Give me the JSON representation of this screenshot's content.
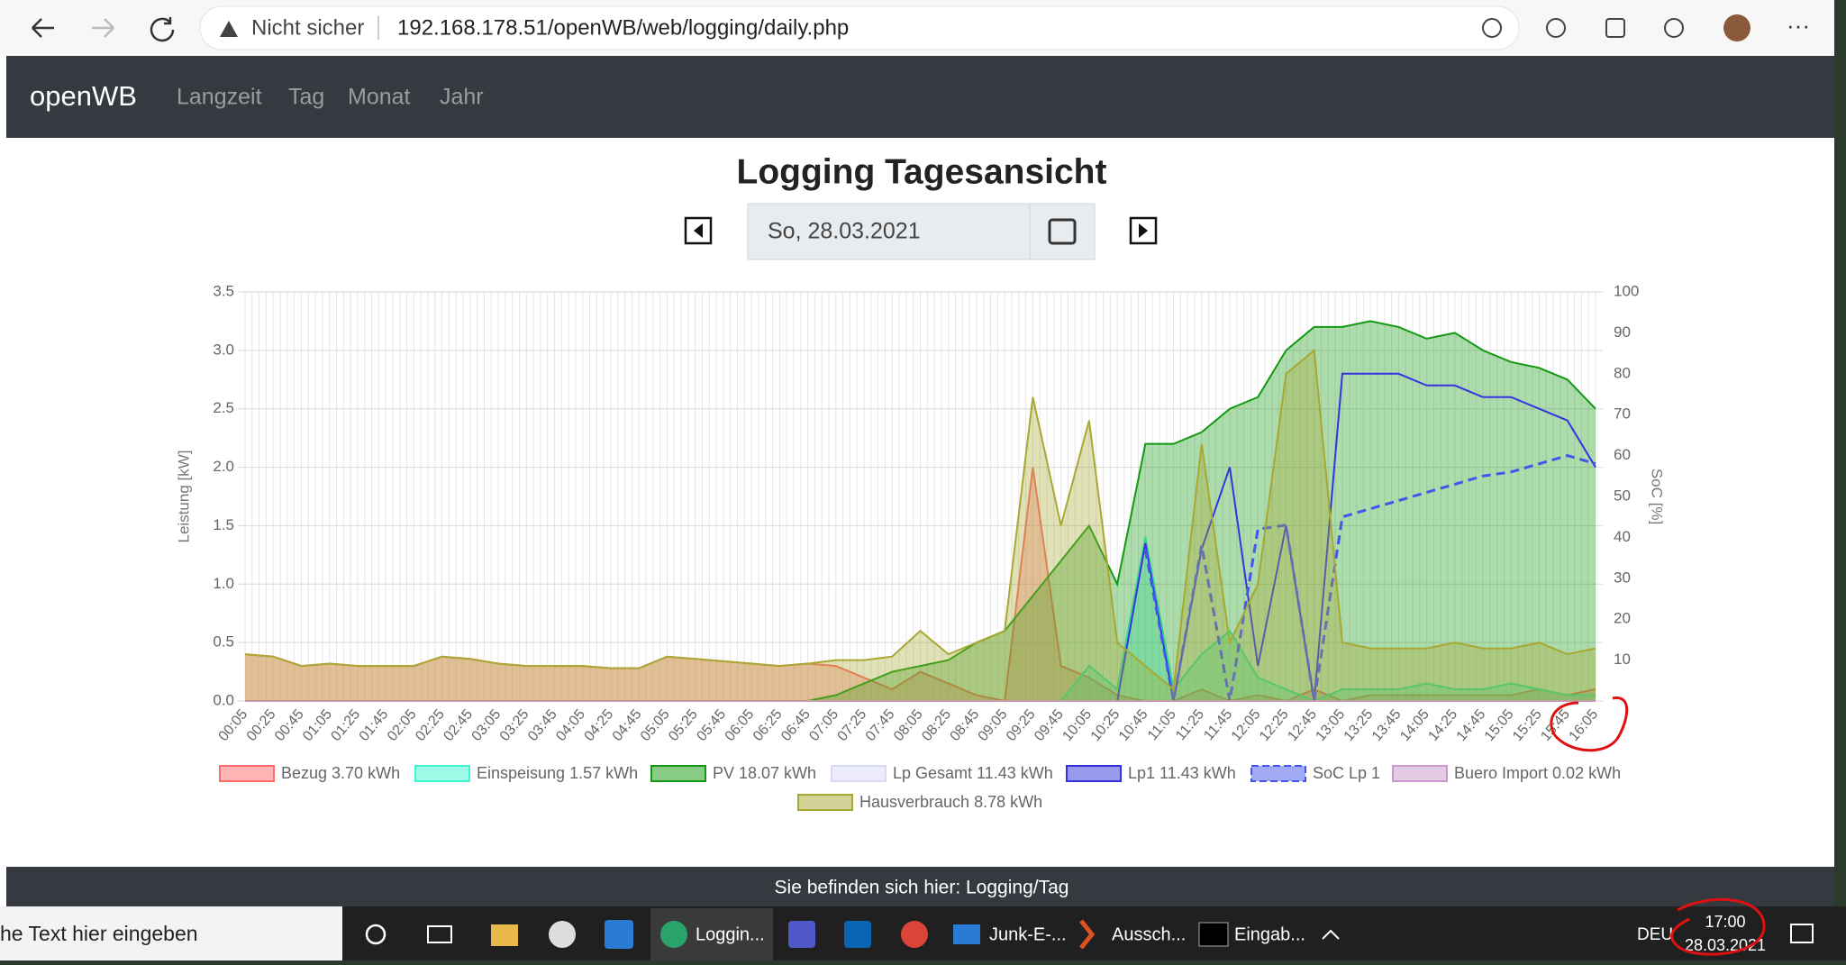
{
  "browser": {
    "security": "Nicht sicher",
    "url": "192.168.178.51/openWB/web/logging/daily.php"
  },
  "navbar": {
    "brand": "openWB",
    "links": [
      "Langzeit",
      "Tag",
      "Monat",
      "Jahr"
    ]
  },
  "page": {
    "title": "Logging Tagesansicht",
    "date": "So, 28.03.2021"
  },
  "chart_data": {
    "type": "line",
    "y_label": "Leistung [kW]",
    "y2_label": "SoC [%]",
    "categories": [
      "00:05",
      "00:25",
      "00:45",
      "01:05",
      "01:25",
      "01:45",
      "02:05",
      "02:25",
      "02:45",
      "03:05",
      "03:25",
      "03:45",
      "04:05",
      "04:25",
      "04:45",
      "05:05",
      "05:25",
      "05:45",
      "06:05",
      "06:25",
      "06:45",
      "07:05",
      "07:25",
      "07:45",
      "08:05",
      "08:25",
      "08:45",
      "09:05",
      "09:25",
      "09:45",
      "10:05",
      "10:25",
      "10:45",
      "11:05",
      "11:25",
      "11:45",
      "12:05",
      "12:25",
      "12:45",
      "13:05",
      "13:25",
      "13:45",
      "14:05",
      "14:25",
      "14:45",
      "15:05",
      "15:25",
      "15:45",
      "16:05"
    ],
    "ylim": [
      0,
      3.5
    ],
    "yticks": [
      {
        "value": 0,
        "label": "0.0"
      },
      0.5,
      {
        "value": 1,
        "label": "1.0"
      },
      1.5,
      {
        "value": 2,
        "label": "2.0"
      },
      2.5,
      {
        "value": 3,
        "label": "3.0"
      },
      3.5
    ],
    "y2lim": [
      0,
      100
    ],
    "y2ticks": [
      10,
      20,
      30,
      40,
      50,
      60,
      70,
      80,
      90,
      100
    ],
    "grid": true,
    "series": [
      {
        "name": "Bezug 3.70 kWh",
        "color": "#ff6b6b",
        "fill": true,
        "values": [
          0.4,
          0.38,
          0.3,
          0.32,
          0.3,
          0.3,
          0.3,
          0.38,
          0.36,
          0.32,
          0.3,
          0.3,
          0.3,
          0.28,
          0.28,
          0.38,
          0.36,
          0.34,
          0.32,
          0.3,
          0.32,
          0.3,
          0.2,
          0.1,
          0.25,
          0.15,
          0.05,
          0,
          2.0,
          0.3,
          0.2,
          0.05,
          0,
          0,
          0.1,
          0,
          0.05,
          0,
          0.1,
          0,
          0.05,
          0.05,
          0.05,
          0.05,
          0.05,
          0.05,
          0.1,
          0.05,
          0.1
        ]
      },
      {
        "name": "Einspeisung 1.57 kWh",
        "color": "#3ff5cf",
        "fill": true,
        "values": [
          0,
          0,
          0,
          0,
          0,
          0,
          0,
          0,
          0,
          0,
          0,
          0,
          0,
          0,
          0,
          0,
          0,
          0,
          0,
          0,
          0,
          0,
          0,
          0,
          0,
          0,
          0,
          0,
          0,
          0,
          0.3,
          0.1,
          1.4,
          0.1,
          0.4,
          0.6,
          0.2,
          0.1,
          0,
          0.1,
          0.1,
          0.1,
          0.15,
          0.1,
          0.1,
          0.15,
          0.1,
          0.05,
          0.05
        ]
      },
      {
        "name": "PV 18.07 kWh",
        "color": "#119911",
        "fill": true,
        "values": [
          0,
          0,
          0,
          0,
          0,
          0,
          0,
          0,
          0,
          0,
          0,
          0,
          0,
          0,
          0,
          0,
          0,
          0,
          0,
          0,
          0,
          0.05,
          0.15,
          0.25,
          0.3,
          0.35,
          0.5,
          0.6,
          0.9,
          1.2,
          1.5,
          1.0,
          2.2,
          2.2,
          2.3,
          2.5,
          2.6,
          3.0,
          3.2,
          3.2,
          3.25,
          3.2,
          3.1,
          3.15,
          3.0,
          2.9,
          2.85,
          2.75,
          2.5
        ]
      },
      {
        "name": "Lp Gesamt 11.43 kWh",
        "color": "#d8d8f8",
        "fill": false,
        "values": [
          0,
          0,
          0,
          0,
          0,
          0,
          0,
          0,
          0,
          0,
          0,
          0,
          0,
          0,
          0,
          0,
          0,
          0,
          0,
          0,
          0,
          0,
          0,
          0,
          0,
          0,
          0,
          0,
          0,
          0,
          0,
          0,
          1.35,
          0,
          1.3,
          2.0,
          0.3,
          1.5,
          0,
          2.8,
          2.8,
          2.8,
          2.7,
          2.7,
          2.6,
          2.6,
          2.5,
          2.4,
          2.0
        ]
      },
      {
        "name": "Lp1 11.43 kWh",
        "color": "#3333dd",
        "fill": false,
        "values": [
          0,
          0,
          0,
          0,
          0,
          0,
          0,
          0,
          0,
          0,
          0,
          0,
          0,
          0,
          0,
          0,
          0,
          0,
          0,
          0,
          0,
          0,
          0,
          0,
          0,
          0,
          0,
          0,
          0,
          0,
          0,
          0,
          1.35,
          0,
          1.3,
          2.0,
          0.3,
          1.5,
          0,
          2.8,
          2.8,
          2.8,
          2.7,
          2.7,
          2.6,
          2.6,
          2.5,
          2.4,
          2.0
        ]
      },
      {
        "name": "SoC Lp 1",
        "color": "#4455ee",
        "dashed": true,
        "axis": "y2",
        "values": [
          null,
          null,
          null,
          null,
          null,
          null,
          null,
          null,
          null,
          null,
          null,
          null,
          null,
          null,
          null,
          null,
          null,
          null,
          null,
          null,
          null,
          null,
          null,
          null,
          null,
          null,
          null,
          null,
          null,
          null,
          null,
          null,
          37,
          0,
          38,
          0,
          42,
          43,
          0,
          45,
          47,
          49,
          51,
          53,
          55,
          56,
          58,
          60,
          58
        ]
      },
      {
        "name": "Buero Import 0.02 kWh",
        "color": "#cc99cc",
        "fill": false,
        "values": [
          0,
          0,
          0,
          0,
          0,
          0,
          0,
          0,
          0,
          0,
          0,
          0,
          0,
          0,
          0,
          0,
          0,
          0,
          0,
          0,
          0,
          0,
          0,
          0,
          0,
          0,
          0,
          0,
          0,
          0,
          0,
          0,
          0,
          0,
          0,
          0,
          0,
          0,
          0,
          0,
          0,
          0,
          0,
          0,
          0,
          0,
          0,
          0,
          0
        ]
      },
      {
        "name": "Hausverbrauch 8.78 kWh",
        "color": "#a8a832",
        "fill": true,
        "values": [
          0.4,
          0.38,
          0.3,
          0.32,
          0.3,
          0.3,
          0.3,
          0.38,
          0.36,
          0.32,
          0.3,
          0.3,
          0.3,
          0.28,
          0.28,
          0.38,
          0.36,
          0.34,
          0.32,
          0.3,
          0.32,
          0.35,
          0.35,
          0.38,
          0.6,
          0.4,
          0.5,
          0.6,
          2.6,
          1.5,
          2.4,
          0.5,
          0.3,
          0.1,
          2.2,
          0.5,
          1.0,
          2.8,
          3.0,
          0.5,
          0.45,
          0.45,
          0.45,
          0.5,
          0.45,
          0.45,
          0.5,
          0.4,
          0.45
        ]
      }
    ]
  },
  "footer": "Sie befinden sich hier: Logging/Tag",
  "taskbar": {
    "search": "he Text hier eingeben",
    "apps": [
      "Loggin...",
      "Junk-E-...",
      "Aussch...",
      "Eingab..."
    ],
    "language": "DEU",
    "time": "17:00",
    "date": "28.03.2021"
  }
}
